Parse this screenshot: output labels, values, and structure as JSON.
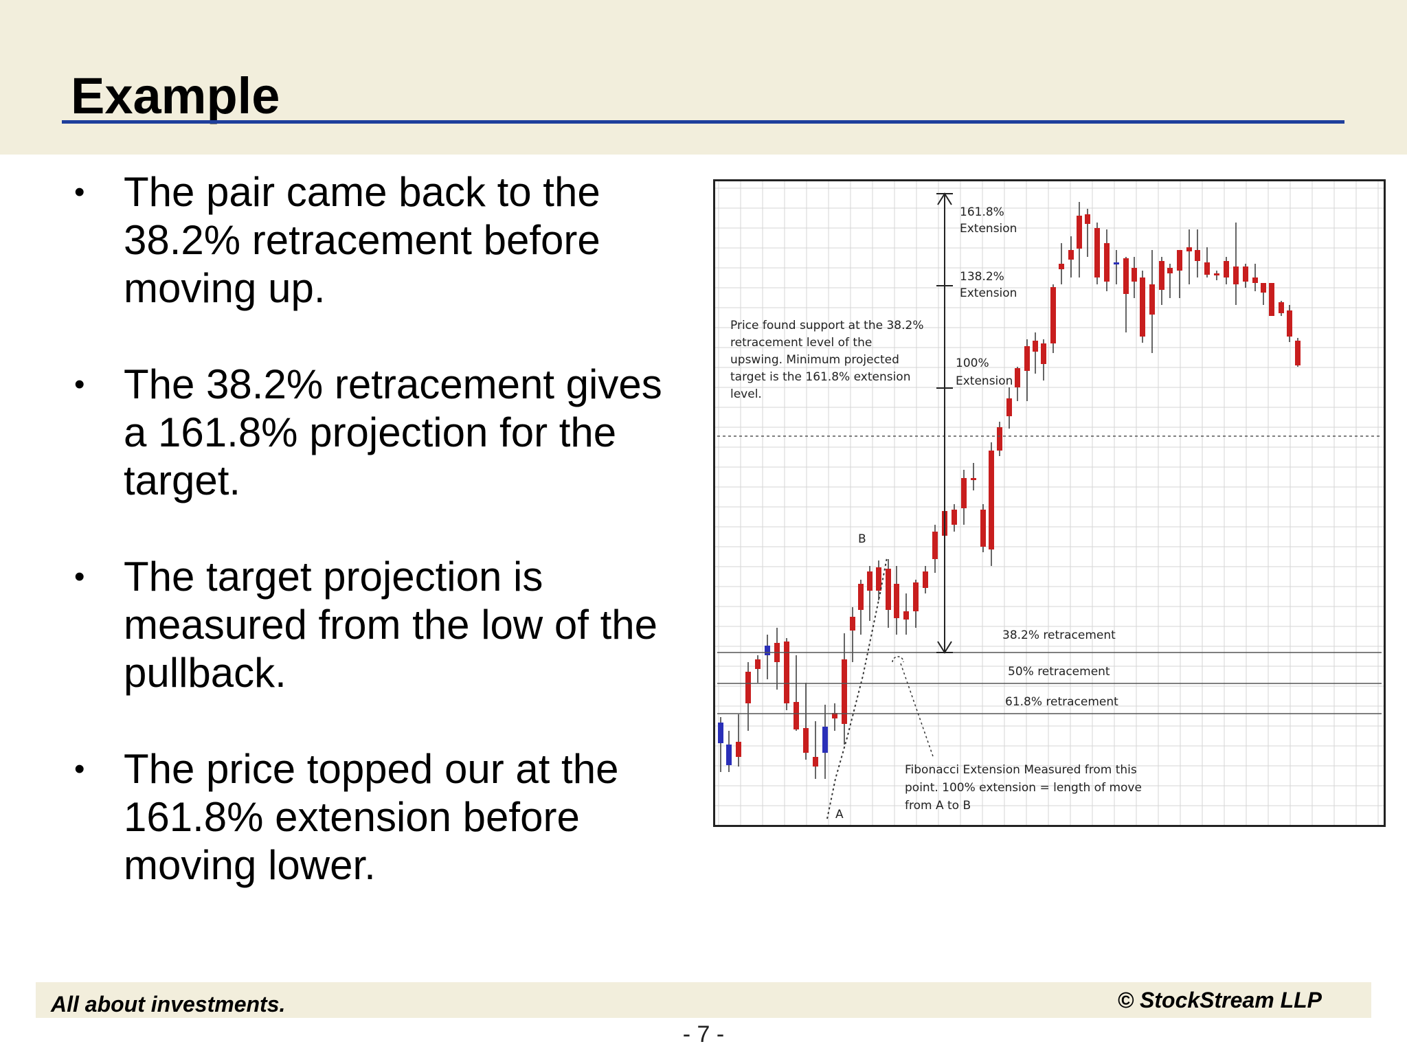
{
  "slide": {
    "title": "Example",
    "bullets": [
      "The pair came back to the 38.2% retracement before moving up.",
      "The 38.2% retracement gives a 161.8% projection for the target.",
      "The target projection is measured from the low of the pullback.",
      "The price topped our at the 161.8% extension before moving lower."
    ],
    "bullet_symbol": "•"
  },
  "chart": {
    "annotations": {
      "ext_161": [
        "161.8%",
        "Extension"
      ],
      "ext_138": [
        "138.2%",
        "Extension"
      ],
      "ext_100": [
        "100%",
        "Extension"
      ],
      "support_note": [
        "Price found support at the 38.2%",
        "retracement level of the",
        "upswing. Minimum projected",
        "target is the 161.8% extension",
        "level."
      ],
      "point_a": "A",
      "point_b": "B",
      "ret_382": "38.2% retracement",
      "ret_50": "50% retracement",
      "ret_618": "61.8% retracement",
      "fib_note": [
        "Fibonacci Extension Measured from this",
        "point. 100% extension = length of move",
        "from A to B"
      ]
    },
    "colors": {
      "bull": "#2a2fb8",
      "bear": "#c81e1e",
      "grid": "#d6d6d6"
    }
  },
  "footer": {
    "left": "All about investments.",
    "right": "© StockStream LLP",
    "page": "- 7 -"
  }
}
